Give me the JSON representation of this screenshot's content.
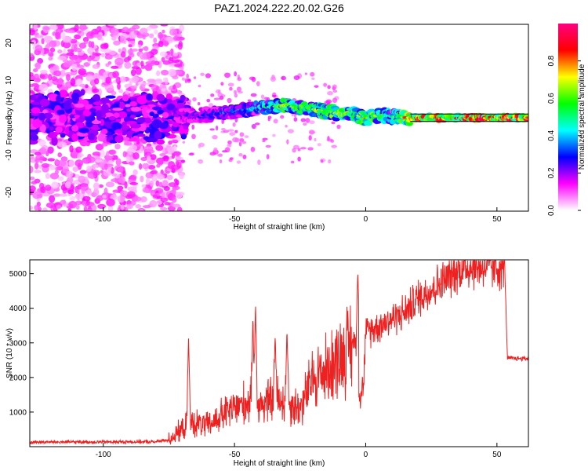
{
  "title": "PAZ1.2024.222.20.02.G26",
  "chart_data": [
    {
      "type": "heatmap",
      "xlabel": "Height of straight line (km)",
      "ylabel": "Frequency (Hz)",
      "xlim": [
        -128,
        62
      ],
      "ylim": [
        -25,
        25
      ],
      "x_ticks": [
        -100,
        -50,
        0,
        50
      ],
      "y_ticks": [
        20,
        10,
        0,
        -10,
        -20
      ],
      "x_tick_labels": [
        "-100",
        "-50",
        "0",
        "50"
      ],
      "y_tick_labels": [
        "20",
        "10",
        "0",
        "-10",
        "-20"
      ],
      "colorbar": {
        "label": "Normalized spectral amplitude",
        "range": [
          0,
          1
        ],
        "ticks": [
          "0.0",
          "0.2",
          "0.4",
          "0.6",
          "0.8"
        ],
        "colors": [
          "#ffffff",
          "#ff00ff",
          "#0000ff",
          "#00ffff",
          "#00ff00",
          "#ffff00",
          "#ff0000",
          "#ff0080"
        ]
      },
      "ridge": {
        "x": [
          -72,
          -60,
          -50,
          -40,
          -30,
          -20,
          -10,
          -5,
          0,
          5,
          10,
          17,
          30,
          62
        ],
        "y": [
          0.5,
          0.8,
          1.8,
          2.8,
          3.2,
          2.3,
          1.0,
          1.2,
          -0.2,
          0.8,
          0.3,
          0.0,
          0.0,
          0.0
        ],
        "amplitude": [
          0.25,
          0.3,
          0.35,
          0.45,
          0.65,
          0.6,
          0.7,
          0.55,
          0.75,
          0.6,
          0.5,
          0.85,
          0.9,
          0.9
        ]
      },
      "guide_lines_hz": [
        1,
        -1
      ]
    },
    {
      "type": "line",
      "xlabel": "Height of straight line (km)",
      "ylabel": "SNR (10 * v/v)",
      "xlim": [
        -128,
        62
      ],
      "ylim": [
        0,
        5400
      ],
      "x_ticks": [
        -100,
        -50,
        0,
        50
      ],
      "y_ticks": [
        1000,
        2000,
        3000,
        4000,
        5000
      ],
      "x_tick_labels": [
        "-100",
        "-50",
        "0",
        "50"
      ],
      "y_tick_labels": [
        "1000",
        "2000",
        "3000",
        "4000",
        "5000"
      ],
      "color": "#ee2020",
      "trend": {
        "x": [
          -128,
          -80,
          -75,
          -70,
          -67,
          -60,
          -55,
          -50,
          -45,
          -40,
          -35,
          -30,
          -25,
          -20,
          -15,
          -10,
          -5,
          -2,
          -1,
          0,
          5,
          10,
          15,
          20,
          30,
          35,
          40,
          45,
          50,
          53,
          54,
          62
        ],
        "y": [
          130,
          140,
          200,
          500,
          700,
          600,
          900,
          1100,
          1300,
          1200,
          1400,
          1300,
          1100,
          2000,
          2200,
          2600,
          3000,
          3100,
          1500,
          3300,
          3500,
          3700,
          3900,
          4300,
          4800,
          5100,
          5200,
          5200,
          5200,
          5150,
          2550,
          2550
        ]
      },
      "spikes": [
        {
          "x": -67.5,
          "y": 3200
        },
        {
          "x": -42,
          "y": 4200
        },
        {
          "x": -43,
          "y": 3800
        },
        {
          "x": -34.5,
          "y": 3200
        },
        {
          "x": -30,
          "y": 3400
        },
        {
          "x": -3,
          "y": 5100
        },
        {
          "x": -2,
          "y": 1100
        }
      ]
    }
  ]
}
